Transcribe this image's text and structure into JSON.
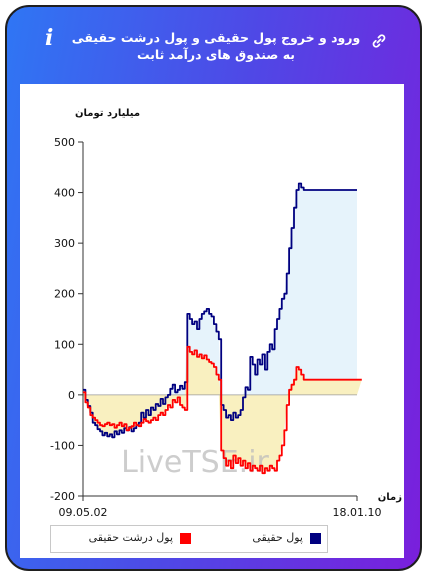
{
  "header": {
    "title": "ورود و خروج پول حقیقی و پول درشت حقیقی به صندوق های درآمد ثابت",
    "link_icon": "link-icon",
    "info_icon_label": "i"
  },
  "colors": {
    "real_money": "#000080",
    "big_real_money": "#ff0000",
    "pos_fill": "#e6f3fb",
    "neg_fill": "#f9f0c0"
  },
  "chart_data": {
    "type": "line",
    "ylabel": "میلیارد تومان",
    "xlabel": "زمان",
    "ylim": [
      -200,
      500
    ],
    "yticks": [
      -200,
      -100,
      0,
      100,
      200,
      300,
      400,
      500
    ],
    "x_start_label": "09.05.02",
    "x_end_label": "18.01.10",
    "watermark": "LiveTSE.ir",
    "grid": false,
    "legend_position": "bottom",
    "series": [
      {
        "name": "پول حقیقی",
        "color": "#000080",
        "values": [
          10,
          -10,
          -22,
          -35,
          -55,
          -60,
          -68,
          -72,
          -80,
          -75,
          -82,
          -78,
          -84,
          -72,
          -78,
          -70,
          -75,
          -66,
          -70,
          -64,
          -72,
          -66,
          -60,
          -55,
          -35,
          -45,
          -30,
          -40,
          -25,
          -30,
          -18,
          -22,
          -8,
          -18,
          -5,
          0,
          12,
          20,
          5,
          10,
          18,
          12,
          25,
          160,
          150,
          140,
          145,
          130,
          150,
          160,
          165,
          170,
          160,
          155,
          140,
          125,
          110,
          -20,
          -30,
          -45,
          -40,
          -50,
          -35,
          -45,
          -40,
          -30,
          -5,
          15,
          10,
          75,
          60,
          40,
          70,
          60,
          80,
          50,
          85,
          100,
          90,
          130,
          150,
          170,
          190,
          200,
          240,
          290,
          330,
          370,
          405,
          418,
          410,
          405,
          405,
          405,
          405,
          405,
          405,
          405,
          405,
          405,
          405,
          405,
          405,
          405,
          405,
          405,
          405,
          405,
          405,
          405,
          405,
          405,
          405,
          405
        ]
      },
      {
        "name": "پول درشت حقیقی",
        "color": "#ff0000",
        "values": [
          5,
          -15,
          -25,
          -40,
          -45,
          -50,
          -55,
          -60,
          -62,
          -58,
          -55,
          -60,
          -58,
          -65,
          -60,
          -55,
          -62,
          -58,
          -70,
          -65,
          -62,
          -55,
          -60,
          -62,
          -55,
          -48,
          -52,
          -55,
          -50,
          -45,
          -50,
          -40,
          -35,
          -40,
          -30,
          -20,
          -25,
          -10,
          -15,
          -5,
          -20,
          -25,
          -30,
          95,
          85,
          80,
          88,
          75,
          80,
          72,
          78,
          70,
          65,
          62,
          55,
          40,
          30,
          -110,
          -125,
          -140,
          -130,
          -145,
          -120,
          -135,
          -125,
          -140,
          -130,
          -145,
          -135,
          -150,
          -140,
          -145,
          -150,
          -140,
          -155,
          -145,
          -150,
          -140,
          -145,
          -150,
          -130,
          -120,
          -100,
          -70,
          -20,
          10,
          20,
          30,
          55,
          50,
          40,
          30,
          30,
          30,
          30,
          30,
          30,
          30,
          30,
          30,
          30,
          30,
          30,
          30,
          30,
          30,
          30,
          30,
          30,
          30,
          30,
          30,
          30,
          30,
          30,
          30
        ]
      }
    ]
  }
}
